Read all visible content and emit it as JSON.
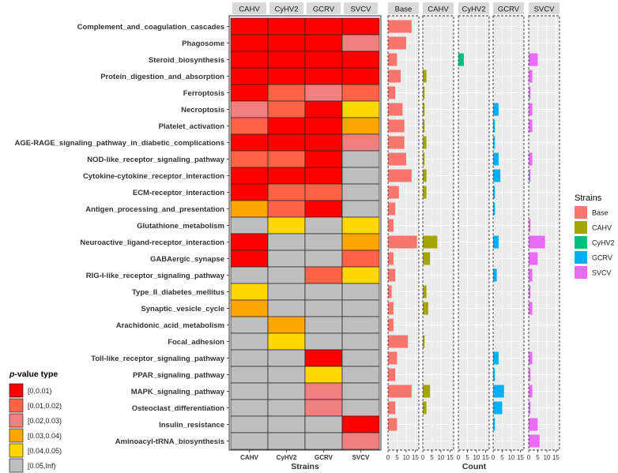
{
  "chart_data": {
    "type": "heatmap",
    "pathways": [
      "Complement_and_coagulation_cascades",
      "Phagosome",
      "Steroid_biosynthesis",
      "Protein_digestion_and_absorption",
      "Ferroptosis",
      "Necroptosis",
      "Platelet_activation",
      "AGE-RAGE_signaling_pathway_in_diabetic_complications",
      "NOD-like_receptor_signaling_pathway",
      "Cytokine-cytokine_receptor_interaction",
      "ECM-receptor_interaction",
      "Antigen_processing_and_presentation",
      "Glutathione_metabolism",
      "Neuroactive_ligand-receptor_interaction",
      "GABAergic_synapse",
      "RIG-I-like_receptor_signaling_pathway",
      "Type_II_diabetes_mellitus",
      "Synaptic_vesicle_cycle",
      "Arachidonic_acid_metabolism",
      "Focal_adhesion",
      "Toll-like_receptor_signaling_pathway",
      "PPAR_signaling_pathway",
      "MAPK_signaling_pathway",
      "Osteoclast_differentiation",
      "Insulin_resistance",
      "Aminoacyl-tRNA_biosynthesis"
    ],
    "heatmap": {
      "strains": [
        "CAHV",
        "CyHV2",
        "GCRV",
        "SVCV"
      ],
      "xlabel": "Strains",
      "pvalue_category_index": [
        [
          0,
          0,
          0,
          0
        ],
        [
          0,
          0,
          0,
          2
        ],
        [
          0,
          0,
          0,
          0
        ],
        [
          0,
          0,
          0,
          0
        ],
        [
          0,
          1,
          2,
          1
        ],
        [
          2,
          1,
          0,
          4
        ],
        [
          1,
          0,
          0,
          3
        ],
        [
          0,
          0,
          0,
          2
        ],
        [
          1,
          1,
          0,
          5
        ],
        [
          0,
          0,
          0,
          5
        ],
        [
          0,
          1,
          1,
          5
        ],
        [
          3,
          1,
          0,
          5
        ],
        [
          5,
          4,
          5,
          4
        ],
        [
          0,
          5,
          5,
          3
        ],
        [
          0,
          5,
          5,
          1
        ],
        [
          5,
          5,
          1,
          4
        ],
        [
          4,
          5,
          5,
          5
        ],
        [
          3,
          5,
          5,
          5
        ],
        [
          5,
          3,
          5,
          5
        ],
        [
          5,
          4,
          5,
          5
        ],
        [
          5,
          5,
          0,
          5
        ],
        [
          5,
          5,
          4,
          5
        ],
        [
          5,
          5,
          2,
          5
        ],
        [
          5,
          5,
          2,
          5
        ],
        [
          5,
          5,
          5,
          0
        ],
        [
          5,
          5,
          5,
          2
        ]
      ]
    },
    "counts": {
      "xlabel": "Count",
      "xlim": [
        0,
        17
      ],
      "ticks": [
        "0",
        "5",
        "10",
        "15"
      ],
      "panels": [
        {
          "name": "Base",
          "color": "#F8766D",
          "values": [
            13,
            10,
            5,
            7,
            4,
            8,
            9,
            9,
            10,
            13,
            6,
            4,
            3,
            16,
            3,
            4,
            2,
            3,
            3,
            11,
            5,
            4,
            13,
            4,
            5,
            0
          ]
        },
        {
          "name": "CAHV",
          "color": "#A3A500",
          "values": [
            0,
            0,
            0,
            2,
            1,
            1,
            1,
            2,
            1,
            2,
            2,
            0,
            0,
            8,
            4,
            0,
            2,
            3,
            0,
            1,
            0,
            0,
            4,
            2,
            0,
            0
          ]
        },
        {
          "name": "CyHV2",
          "color": "#00BF7D",
          "values": [
            0,
            0,
            3,
            0,
            0,
            0,
            0,
            0,
            0,
            0,
            0,
            0,
            0,
            0,
            0,
            0,
            0,
            0,
            0,
            0,
            0,
            0,
            0,
            0,
            0,
            0
          ]
        },
        {
          "name": "GCRV",
          "color": "#00B0F6",
          "values": [
            0,
            0,
            0,
            0,
            0,
            3,
            1,
            1,
            3,
            4,
            1,
            1,
            0,
            3,
            0,
            2,
            0,
            0,
            0,
            0,
            3,
            1,
            6,
            5,
            1,
            0
          ]
        },
        {
          "name": "SVCV",
          "color": "#E76BF3",
          "values": [
            0,
            0,
            5,
            2,
            1,
            2,
            2,
            0,
            2,
            1,
            0,
            0,
            1,
            9,
            5,
            2,
            1,
            2,
            0,
            0,
            2,
            1,
            2,
            1,
            5,
            6
          ]
        }
      ]
    },
    "pvalue_legend": {
      "title_italic": "p",
      "title_rest": "-value type",
      "items": [
        {
          "label": "[0,0.01)",
          "color": "#FF0000"
        },
        {
          "label": "[0.01,0.02)",
          "color": "#FF6347"
        },
        {
          "label": "[0.02,0.03)",
          "color": "#F08080"
        },
        {
          "label": "[0.03,0.04)",
          "color": "#FFA500"
        },
        {
          "label": "[0.04,0.05)",
          "color": "#FFD700"
        },
        {
          "label": "[0.05,Inf)",
          "color": "#BEBEBE"
        }
      ]
    },
    "strain_legend": {
      "title": "Strains",
      "items": [
        {
          "label": "Base",
          "color": "#F8766D"
        },
        {
          "label": "CAHV",
          "color": "#A3A500"
        },
        {
          "label": "CyHV2",
          "color": "#00BF7D"
        },
        {
          "label": "GCRV",
          "color": "#00B0F6"
        },
        {
          "label": "SVCV",
          "color": "#E76BF3"
        }
      ]
    }
  }
}
